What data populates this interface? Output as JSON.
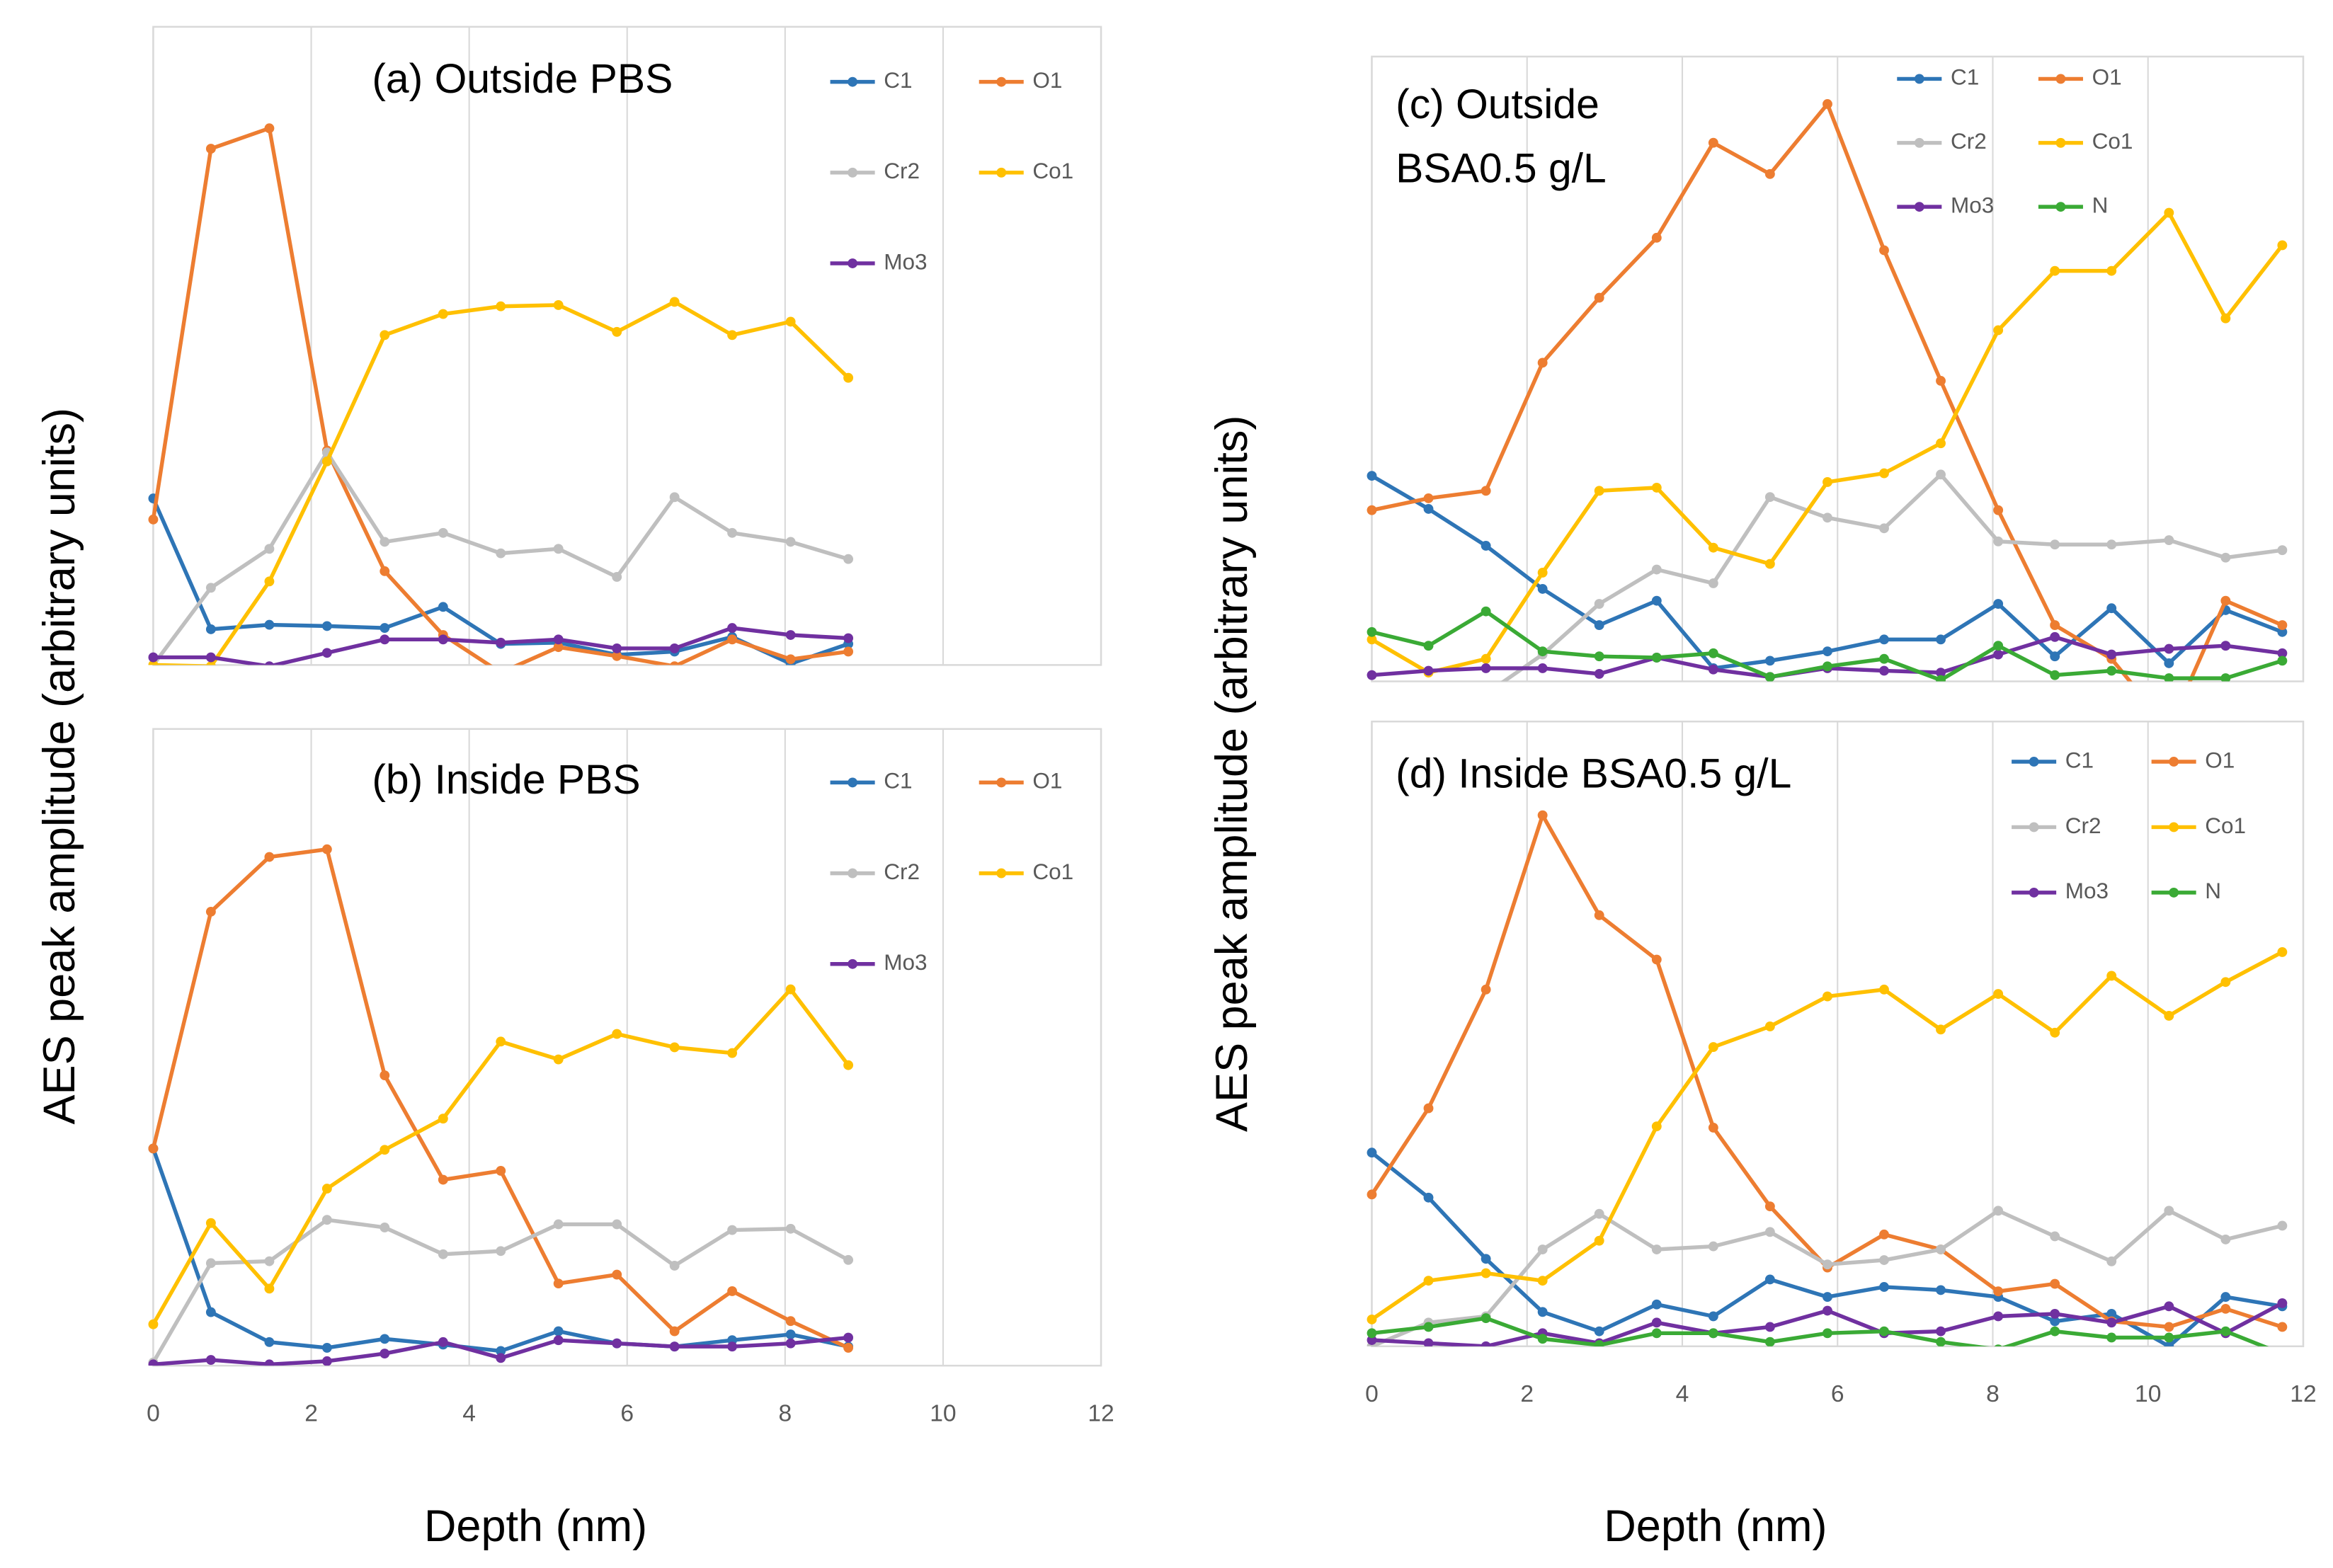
{
  "chart_data": [
    {
      "type": "line",
      "title": [
        "(a) Outside PBS"
      ],
      "ylabel": "AES peak amplitude (arbitrary units)",
      "x": [
        0,
        0.73,
        1.47,
        2.2,
        2.93,
        3.67,
        4.4,
        5.13,
        5.87,
        6.6,
        7.33,
        8.07,
        8.8
      ],
      "xlim": [
        0,
        12
      ],
      "xticks": [
        0,
        2,
        4,
        6,
        8,
        10,
        12
      ],
      "show_xtick_labels": false,
      "ylim": [
        0,
        100
      ],
      "grid": true,
      "series": [
        {
          "name": "C1",
          "color": "#2e75b6",
          "values": [
            26.1,
            5.6,
            6.3,
            6.1,
            5.8,
            9.1,
            3.3,
            3.5,
            1.6,
            2.1,
            4.4,
            0.2,
            3.3
          ]
        },
        {
          "name": "O1",
          "color": "#ed7d31",
          "values": [
            22.8,
            80.9,
            84.1,
            33.6,
            14.7,
            4.7,
            -1.2,
            2.8,
            1.4,
            -0.2,
            4.0,
            0.9,
            2.1
          ]
        },
        {
          "name": "Cr2",
          "color": "#bfbfbf",
          "values": [
            0,
            12.1,
            18.2,
            33.3,
            19.3,
            20.7,
            17.5,
            18.2,
            13.8,
            26.3,
            20.7,
            19.3,
            16.6
          ]
        },
        {
          "name": "Co1",
          "color": "#ffc000",
          "values": [
            0,
            -0.2,
            13.1,
            31.9,
            51.7,
            55.0,
            56.2,
            56.4,
            52.2,
            56.9,
            51.7,
            53.8,
            45.0
          ]
        },
        {
          "name": "Mo3",
          "color": "#7030a0",
          "values": [
            1.2,
            1.2,
            -0.2,
            1.9,
            4.0,
            4.0,
            3.5,
            4.0,
            2.6,
            2.6,
            5.8,
            4.7,
            4.2
          ]
        }
      ]
    },
    {
      "type": "line",
      "title": [
        "(b) Inside PBS"
      ],
      "xlabel": "Depth (nm)",
      "x": [
        0,
        0.73,
        1.47,
        2.2,
        2.93,
        3.67,
        4.4,
        5.13,
        5.87,
        6.6,
        7.33,
        8.07,
        8.8
      ],
      "xlim": [
        0,
        12
      ],
      "xticks": [
        0,
        2,
        4,
        6,
        8,
        10,
        12
      ],
      "show_xtick_labels": true,
      "ylim": [
        0,
        100
      ],
      "grid": true,
      "series": [
        {
          "name": "C1",
          "color": "#2e75b6",
          "values": [
            34.1,
            8.4,
            3.7,
            2.8,
            4.2,
            3.3,
            2.3,
            5.4,
            3.5,
            3.0,
            4.0,
            4.9,
            3.0
          ]
        },
        {
          "name": "O1",
          "color": "#ed7d31",
          "values": [
            34.1,
            71.3,
            79.9,
            81.1,
            45.6,
            29.2,
            30.6,
            12.9,
            14.3,
            5.4,
            11.7,
            7.0,
            2.8
          ]
        },
        {
          "name": "Cr2",
          "color": "#bfbfbf",
          "values": [
            0.5,
            16.1,
            16.4,
            22.9,
            21.7,
            17.5,
            18.0,
            22.2,
            22.2,
            15.7,
            21.3,
            21.5,
            16.6
          ]
        },
        {
          "name": "Co1",
          "color": "#ffc000",
          "values": [
            6.5,
            22.4,
            12.1,
            27.8,
            33.9,
            38.8,
            50.9,
            48.1,
            52.1,
            50.0,
            49.1,
            59.1,
            47.2
          ]
        },
        {
          "name": "Mo3",
          "color": "#7030a0",
          "values": [
            0.2,
            0.9,
            0.2,
            0.7,
            1.9,
            3.7,
            1.2,
            4.0,
            3.5,
            3.0,
            3.0,
            3.5,
            4.4
          ]
        }
      ]
    },
    {
      "type": "line",
      "title": [
        "(c) Outside",
        "BSA0.5 g/L"
      ],
      "ylabel": "AES peak amplitude (arbitrary units)",
      "x": [
        0,
        0.73,
        1.47,
        2.2,
        2.93,
        3.67,
        4.4,
        5.13,
        5.87,
        6.6,
        7.33,
        8.07,
        8.8,
        9.53,
        10.27,
        11,
        11.73
      ],
      "xlim": [
        0,
        12
      ],
      "xticks": [
        0,
        2,
        4,
        6,
        8,
        10,
        12
      ],
      "show_xtick_labels": false,
      "ylim": [
        0,
        100
      ],
      "grid": true,
      "series": [
        {
          "name": "C1",
          "color": "#2e75b6",
          "values": [
            32.9,
            27.6,
            21.7,
            14.8,
            9.0,
            12.9,
            2.1,
            3.3,
            4.8,
            6.7,
            6.7,
            12.4,
            4.0,
            11.7,
            2.9,
            11.4,
            7.9
          ]
        },
        {
          "name": "O1",
          "color": "#ed7d31",
          "values": [
            27.4,
            29.3,
            30.5,
            51.0,
            61.4,
            71.0,
            86.2,
            81.2,
            92.4,
            69.0,
            48.1,
            27.4,
            9.0,
            3.6,
            -7.6,
            12.9,
            9.0
          ]
        },
        {
          "name": "Cr2",
          "color": "#bfbfbf",
          "values": [
            -3,
            -3,
            -2,
            4.3,
            12.4,
            17.9,
            15.7,
            29.5,
            26.2,
            24.5,
            33.1,
            22.4,
            21.9,
            21.9,
            22.6,
            19.8,
            21.0
          ]
        },
        {
          "name": "Co1",
          "color": "#ffc000",
          "values": [
            6.7,
            1.4,
            3.6,
            17.4,
            30.5,
            31.0,
            21.4,
            18.8,
            31.9,
            33.3,
            38.1,
            56.2,
            65.7,
            65.7,
            75.0,
            58.1,
            69.8
          ]
        },
        {
          "name": "Mo3",
          "color": "#7030a0",
          "values": [
            1.0,
            1.7,
            2.1,
            2.1,
            1.2,
            3.8,
            1.9,
            0.7,
            2.1,
            1.7,
            1.4,
            4.3,
            7.1,
            4.3,
            5.2,
            5.7,
            4.5
          ]
        },
        {
          "name": "N",
          "color": "#3aaa35",
          "values": [
            7.9,
            5.7,
            11.2,
            4.8,
            4.0,
            3.8,
            4.5,
            0.7,
            2.4,
            3.6,
            0.2,
            5.7,
            1.0,
            1.7,
            0.5,
            0.5,
            3.3
          ]
        }
      ]
    },
    {
      "type": "line",
      "title": [
        "(d) Inside BSA0.5 g/L"
      ],
      "xlabel": "Depth (nm)",
      "x": [
        0,
        0.73,
        1.47,
        2.2,
        2.93,
        3.67,
        4.4,
        5.13,
        5.87,
        6.6,
        7.33,
        8.07,
        8.8,
        9.53,
        10.27,
        11,
        11.73
      ],
      "xlim": [
        0,
        12
      ],
      "xticks": [
        0,
        2,
        4,
        6,
        8,
        10,
        12
      ],
      "show_xtick_labels": true,
      "ylim": [
        0,
        100
      ],
      "grid": true,
      "series": [
        {
          "name": "C1",
          "color": "#2e75b6",
          "values": [
            31.0,
            23.8,
            14.0,
            5.5,
            2.4,
            6.7,
            4.8,
            10.7,
            7.9,
            9.5,
            9.0,
            7.9,
            4.0,
            5.2,
            0,
            7.9,
            6.4
          ]
        },
        {
          "name": "O1",
          "color": "#ed7d31",
          "values": [
            24.3,
            38.1,
            57.1,
            85.0,
            69.0,
            61.9,
            35.0,
            22.4,
            12.6,
            17.9,
            15.5,
            8.8,
            10.0,
            4.0,
            3.1,
            6.0,
            3.1
          ]
        },
        {
          "name": "Cr2",
          "color": "#bfbfbf",
          "values": [
            0,
            3.8,
            4.8,
            15.5,
            21.2,
            15.5,
            16.0,
            18.3,
            13.1,
            13.8,
            15.5,
            21.7,
            17.6,
            13.6,
            21.7,
            17.1,
            19.3
          ]
        },
        {
          "name": "Co1",
          "color": "#ffc000",
          "values": [
            4.3,
            10.5,
            11.7,
            10.5,
            16.9,
            35.2,
            47.9,
            51.2,
            56.0,
            57.1,
            50.7,
            56.4,
            50.2,
            59.3,
            52.9,
            58.3,
            63.1
          ]
        },
        {
          "name": "Mo3",
          "color": "#7030a0",
          "values": [
            1.0,
            0.5,
            0,
            2.1,
            0.5,
            3.8,
            2.1,
            3.1,
            5.7,
            2.1,
            2.4,
            4.8,
            5.2,
            3.8,
            6.4,
            2.1,
            6.9
          ]
        },
        {
          "name": "N",
          "color": "#3aaa35",
          "values": [
            2.1,
            3.1,
            4.5,
            1.2,
            0.2,
            2.1,
            2.1,
            0.7,
            2.1,
            2.4,
            0.7,
            -0.5,
            2.4,
            1.4,
            1.4,
            2.4,
            -1.2
          ]
        }
      ]
    }
  ]
}
